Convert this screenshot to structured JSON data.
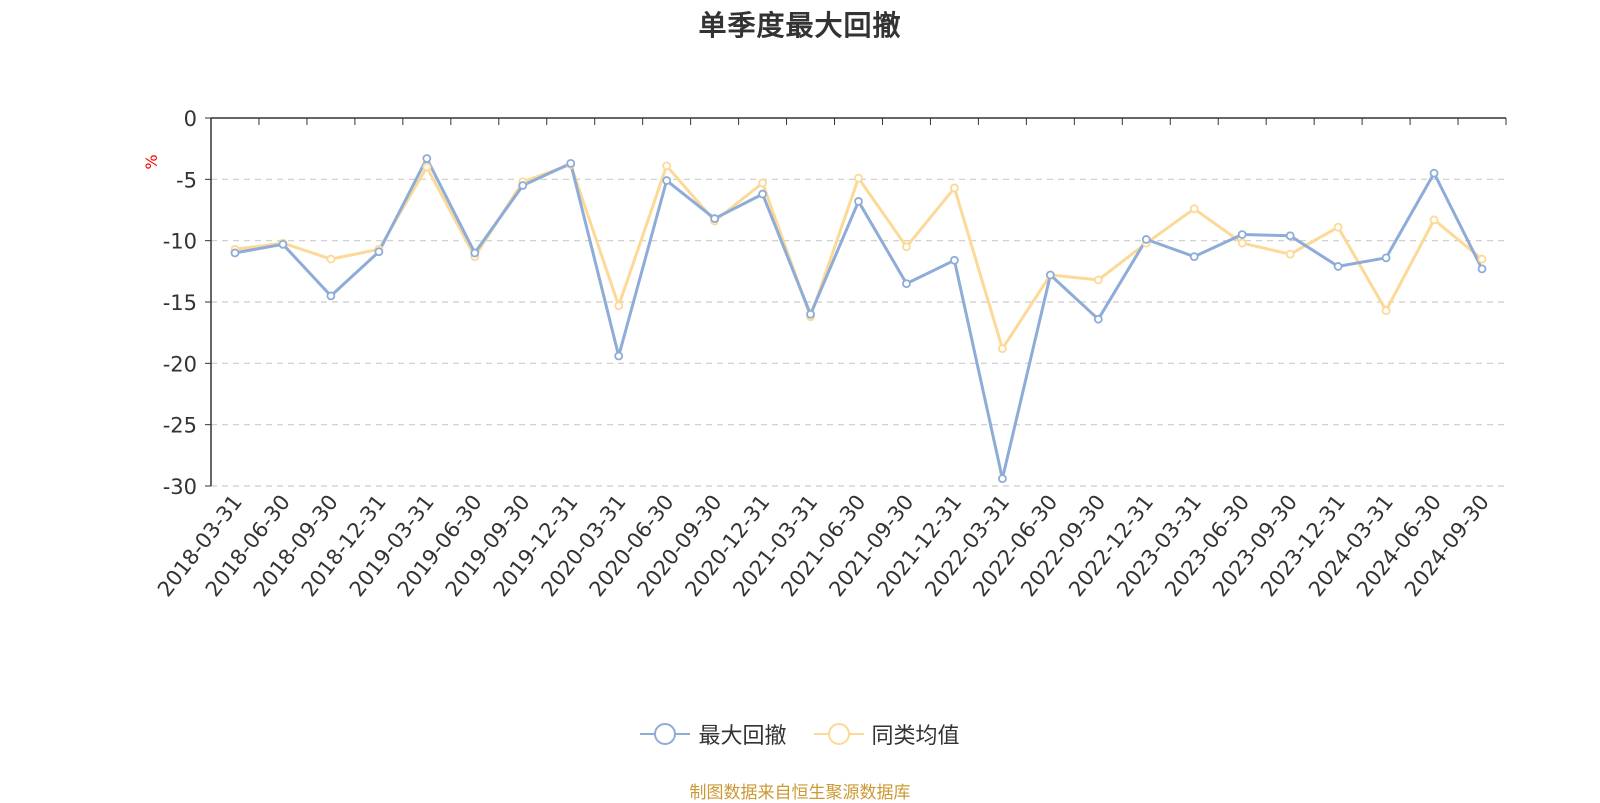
{
  "chart_data": {
    "type": "line",
    "title": "单季度最大回撤",
    "ylabel": "%",
    "ylim": [
      -30,
      0
    ],
    "yticks": [
      0,
      -5,
      -10,
      -15,
      -20,
      -25,
      -30
    ],
    "grid": true,
    "legend_position": "bottom",
    "categories": [
      "2018-03-31",
      "2018-06-30",
      "2018-09-30",
      "2018-12-31",
      "2019-03-31",
      "2019-06-30",
      "2019-09-30",
      "2019-12-31",
      "2020-03-31",
      "2020-06-30",
      "2020-09-30",
      "2020-12-31",
      "2021-03-31",
      "2021-06-30",
      "2021-09-30",
      "2021-12-31",
      "2022-03-31",
      "2022-06-30",
      "2022-09-30",
      "2022-12-31",
      "2023-03-31",
      "2023-06-30",
      "2023-09-30",
      "2023-12-31",
      "2024-03-31",
      "2024-06-30",
      "2024-09-30"
    ],
    "series": [
      {
        "name": "最大回撤",
        "color": "#8eacd8",
        "values": [
          -11.0,
          -10.3,
          -14.5,
          -10.9,
          -3.3,
          -11.0,
          -5.5,
          -3.7,
          -19.4,
          -5.1,
          -8.2,
          -6.2,
          -16.0,
          -6.8,
          -13.5,
          -11.6,
          -29.4,
          -12.8,
          -16.4,
          -9.9,
          -11.3,
          -9.5,
          -9.6,
          -12.1,
          -11.4,
          -4.5,
          -12.3
        ]
      },
      {
        "name": "同类均值",
        "color": "#fcd997",
        "values": [
          -10.7,
          -10.2,
          -11.5,
          -10.7,
          -4.0,
          -11.3,
          -5.2,
          -3.8,
          -15.3,
          -3.9,
          -8.4,
          -5.3,
          -16.2,
          -4.9,
          -10.5,
          -5.7,
          -18.8,
          -12.8,
          -13.2,
          -10.2,
          -7.4,
          -10.2,
          -11.1,
          -8.9,
          -15.7,
          -8.3,
          -11.5
        ]
      }
    ],
    "source_note": "制图数据来自恒生聚源数据库",
    "axis_color": "#333333",
    "grid_color": "#cccccc",
    "ylabel_color": "#ff0000",
    "source_color": "#cc9933"
  }
}
